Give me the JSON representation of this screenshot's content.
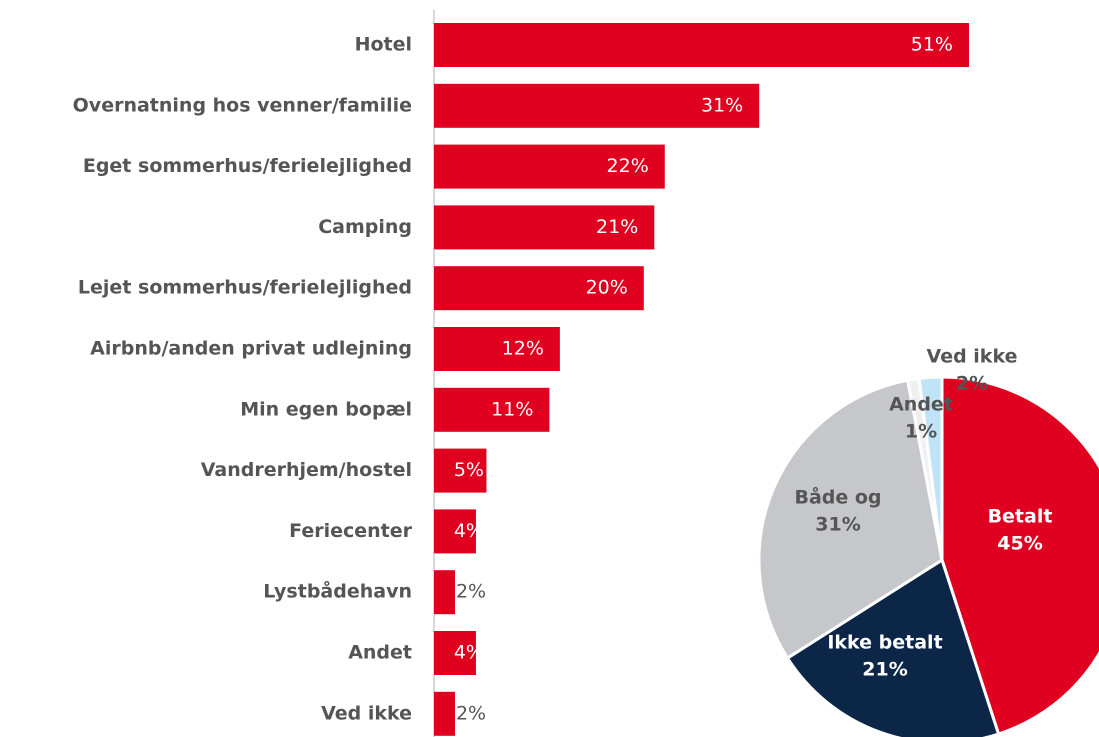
{
  "chart_data": [
    {
      "type": "bar",
      "orientation": "horizontal",
      "color": "#e0001f",
      "categories": [
        "Hotel",
        "Overnatning hos venner/familie",
        "Eget sommerhus/ferielejlighed",
        "Camping",
        "Lejet sommerhus/ferielejlighed",
        "Airbnb/anden privat udlejning",
        "Min egen bopæl",
        "Vandrerhjem/hostel",
        "Feriecenter",
        "Lystbådehavn",
        "Andet",
        "Ved ikke"
      ],
      "values": [
        51,
        31,
        22,
        21,
        20,
        12,
        11,
        5,
        4,
        2,
        4,
        2
      ],
      "value_labels": [
        "51%",
        "31%",
        "22%",
        "21%",
        "20%",
        "12%",
        "11%",
        "5%",
        "4%",
        "2%",
        "4%",
        "2%"
      ]
    },
    {
      "type": "pie",
      "labels": [
        "Betalt",
        "Ikke betalt",
        "Både og",
        "Andet",
        "Ved ikke"
      ],
      "values": [
        45,
        21,
        31,
        1,
        2
      ],
      "value_labels": [
        "45%",
        "21%",
        "31%",
        "1%",
        "2%"
      ],
      "colors": [
        "#e0001f",
        "#0c2647",
        "#c6c7cb",
        "#eef0f2",
        "#bfe3f7"
      ]
    }
  ]
}
